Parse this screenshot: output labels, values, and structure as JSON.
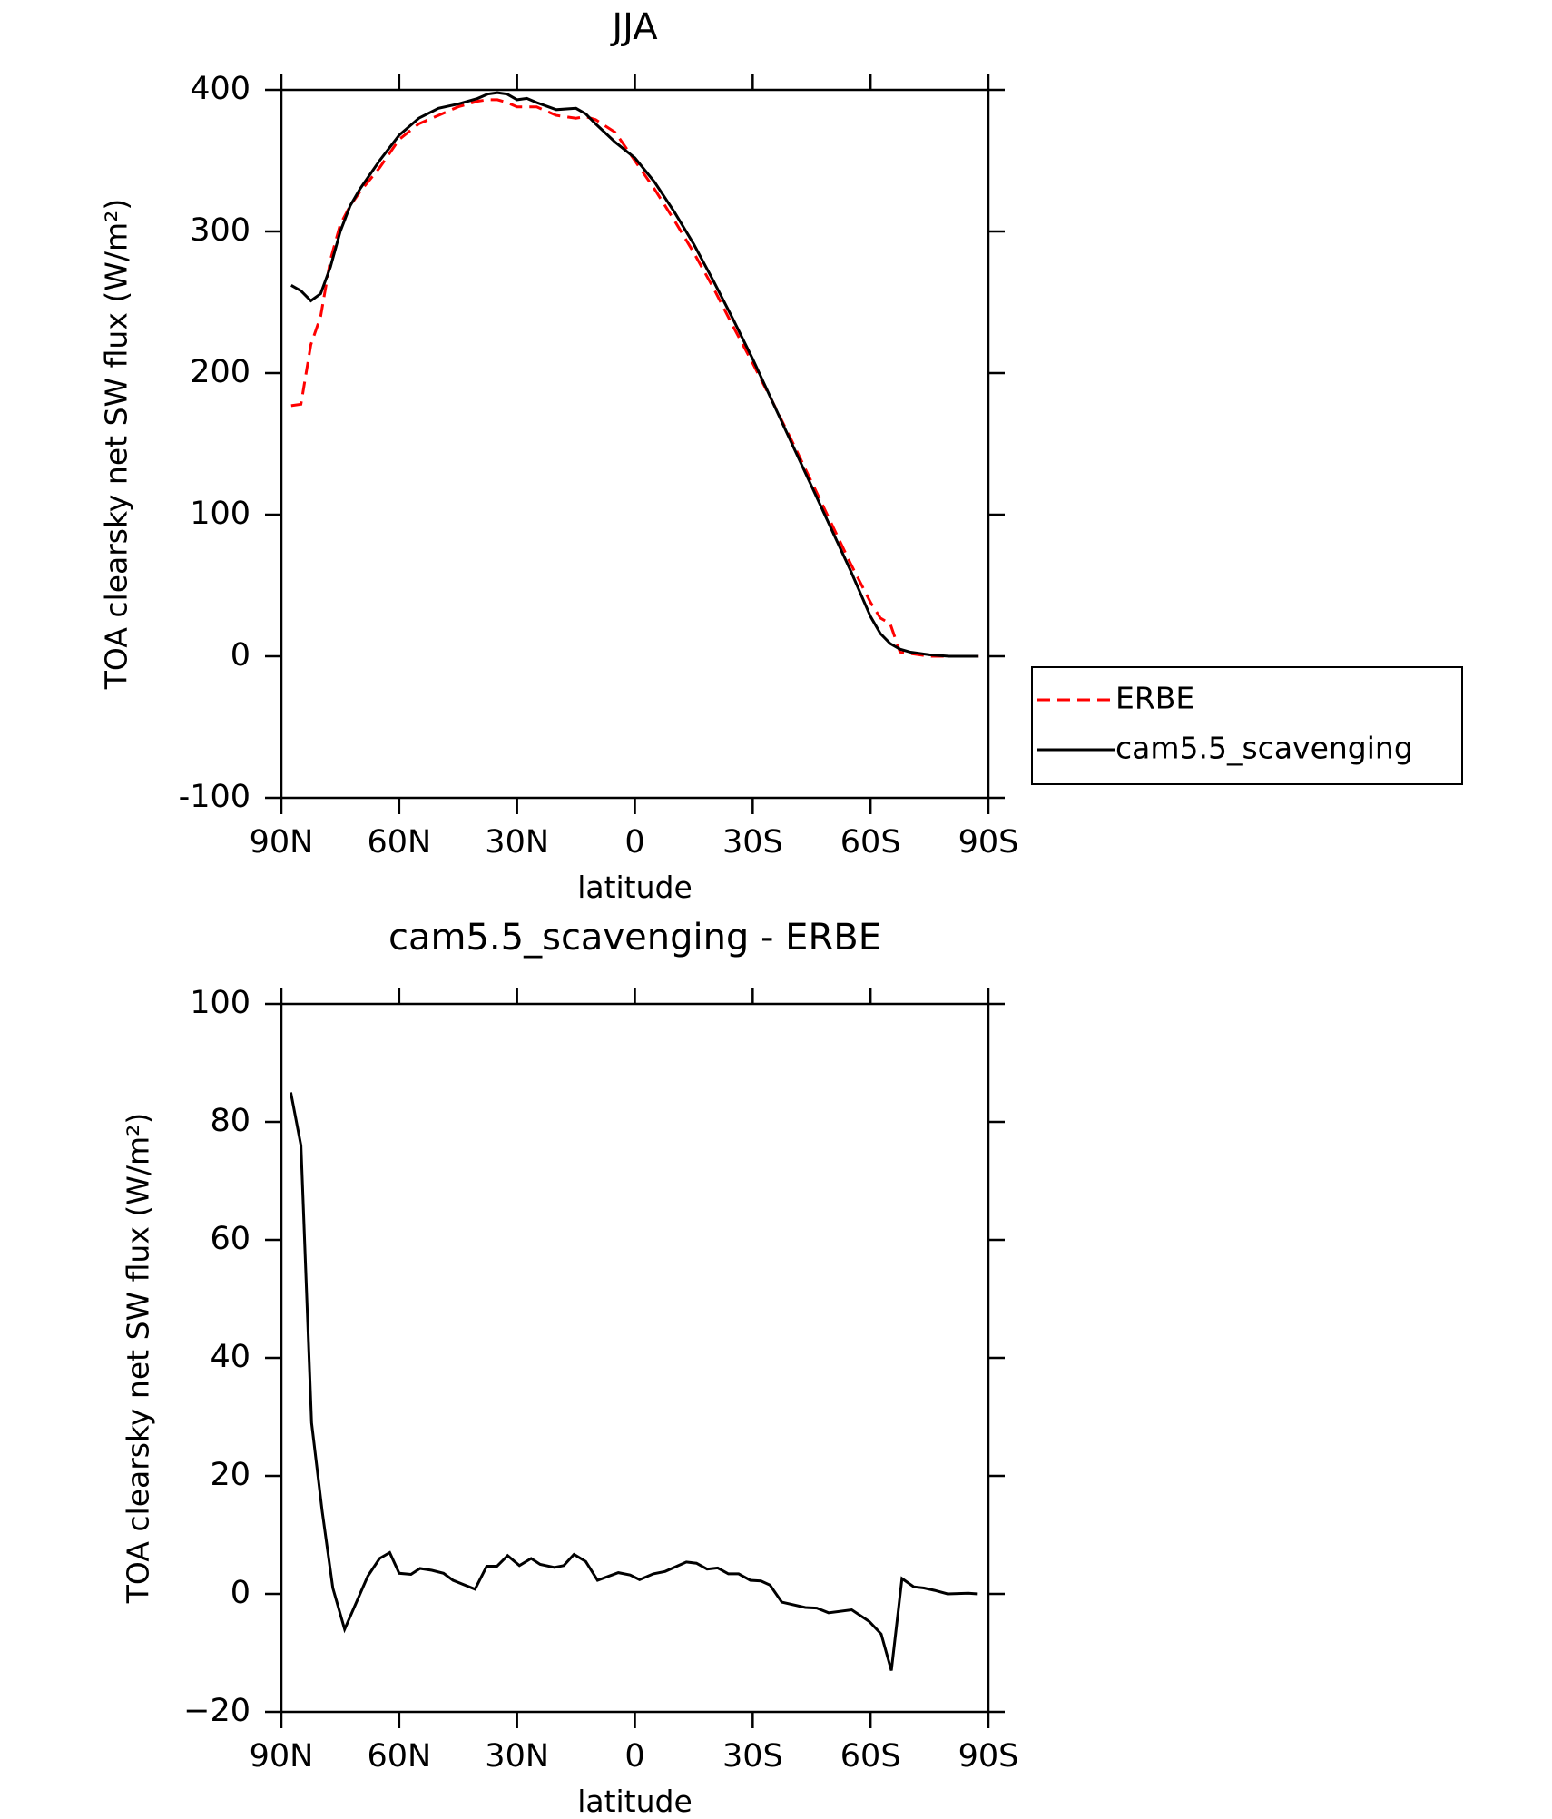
{
  "chart_data": [
    {
      "type": "line",
      "title": "JJA",
      "xlabel": "latitude",
      "ylabel": "TOA clearsky net SW flux (W/m²)",
      "xlim": [
        90,
        -90
      ],
      "ylim": [
        -100,
        400
      ],
      "xticks": [
        {
          "value": 90,
          "label": "90N"
        },
        {
          "value": 60,
          "label": "60N"
        },
        {
          "value": 30,
          "label": "30N"
        },
        0,
        {
          "value": -30,
          "label": "30S"
        },
        {
          "value": -60,
          "label": "60S"
        },
        {
          "value": -90,
          "label": "90S"
        }
      ],
      "yticks": [
        -100,
        0,
        100,
        200,
        300,
        400
      ],
      "legend": "outside-right",
      "x": [
        87.5,
        85,
        82.5,
        80,
        77.5,
        75,
        72.5,
        70,
        65,
        60,
        55,
        50,
        45,
        40,
        37.5,
        35,
        32.5,
        30,
        27.5,
        25,
        20,
        15,
        12.5,
        10,
        5,
        0,
        -5,
        -10,
        -15,
        -20,
        -25,
        -30,
        -35,
        -40,
        -45,
        -50,
        -55,
        -60,
        -62.5,
        -65,
        -67.5,
        -70,
        -75,
        -80,
        -85,
        -87.5
      ],
      "series": [
        {
          "name": "ERBE",
          "color": "#ff0000",
          "dash": "dashed",
          "values": [
            177,
            178,
            220,
            240,
            280,
            305,
            318,
            328,
            345,
            365,
            376,
            382,
            388,
            392,
            393,
            393,
            391,
            388,
            388,
            388,
            382,
            380,
            381,
            379,
            370,
            350,
            330,
            308,
            285,
            260,
            233,
            207,
            180,
            152,
            123,
            94,
            65,
            38,
            27,
            23,
            3,
            2,
            0,
            0,
            0,
            0
          ]
        },
        {
          "name": "cam5.5_scavenging",
          "color": "#000000",
          "dash": "solid",
          "values": [
            262,
            258,
            251,
            256,
            275,
            300,
            318,
            330,
            350,
            368,
            380,
            387,
            390,
            394,
            397,
            398,
            397,
            393,
            394,
            391,
            386,
            387,
            383,
            376,
            363,
            352,
            335,
            314,
            291,
            265,
            238,
            210,
            180,
            150,
            120,
            90,
            60,
            28,
            16,
            9,
            5,
            3,
            1,
            0,
            0,
            0
          ]
        }
      ]
    },
    {
      "type": "line",
      "title": "cam5.5_scavenging - ERBE",
      "xlabel": "latitude",
      "ylabel": "TOA clearsky net SW flux (W/m²)",
      "xlim": [
        90,
        -90
      ],
      "ylim": [
        -20,
        100
      ],
      "xticks": [
        {
          "value": 90,
          "label": "90N"
        },
        {
          "value": 60,
          "label": "60N"
        },
        {
          "value": 30,
          "label": "30N"
        },
        0,
        {
          "value": -30,
          "label": "30S"
        },
        {
          "value": -60,
          "label": "60S"
        },
        {
          "value": -90,
          "label": "90S"
        }
      ],
      "yticks": [
        {
          "value": -20,
          "label": "−20"
        },
        0,
        20,
        40,
        60,
        80,
        100
      ],
      "x": [
        87.6,
        85,
        82.3,
        79.6,
        76.9,
        73.9,
        68,
        65,
        62.4,
        60,
        57,
        54.7,
        51.7,
        48.7,
        46.3,
        40.7,
        37.7,
        35.1,
        32.4,
        29.4,
        26.4,
        24.1,
        20.5,
        18.1,
        15.5,
        12.5,
        9.5,
        4.2,
        1.2,
        -1.2,
        -4.7,
        -7.7,
        -13.1,
        -15.7,
        -18.4,
        -21.1,
        -23.8,
        -26.4,
        -29.4,
        -32.1,
        -34.4,
        -37.4,
        -43.4,
        -46.3,
        -49.3,
        -55.2,
        -59.7,
        -62.7,
        -65.3,
        -68,
        -71,
        -73.6,
        -76.3,
        -79.6,
        -84.9,
        -87.3
      ],
      "series": [
        {
          "color": "#000000",
          "dash": "solid",
          "values": [
            85,
            76,
            29,
            14,
            1,
            -6,
            3,
            6,
            7,
            3.5,
            3.3,
            4.3,
            4,
            3.5,
            2.3,
            0.8,
            4.7,
            4.7,
            6.5,
            4.8,
            6,
            5,
            4.5,
            4.8,
            6.7,
            5.5,
            2.3,
            3.6,
            3.2,
            2.4,
            3.4,
            3.8,
            5.4,
            5.2,
            4.2,
            4.4,
            3.4,
            3.4,
            2.3,
            2.2,
            1.5,
            -1.4,
            -2.3,
            -2.4,
            -3.2,
            -2.7,
            -4.7,
            -6.8,
            -13,
            2.6,
            1.2,
            1,
            0.6,
            0,
            0.1,
            0
          ]
        }
      ]
    }
  ]
}
